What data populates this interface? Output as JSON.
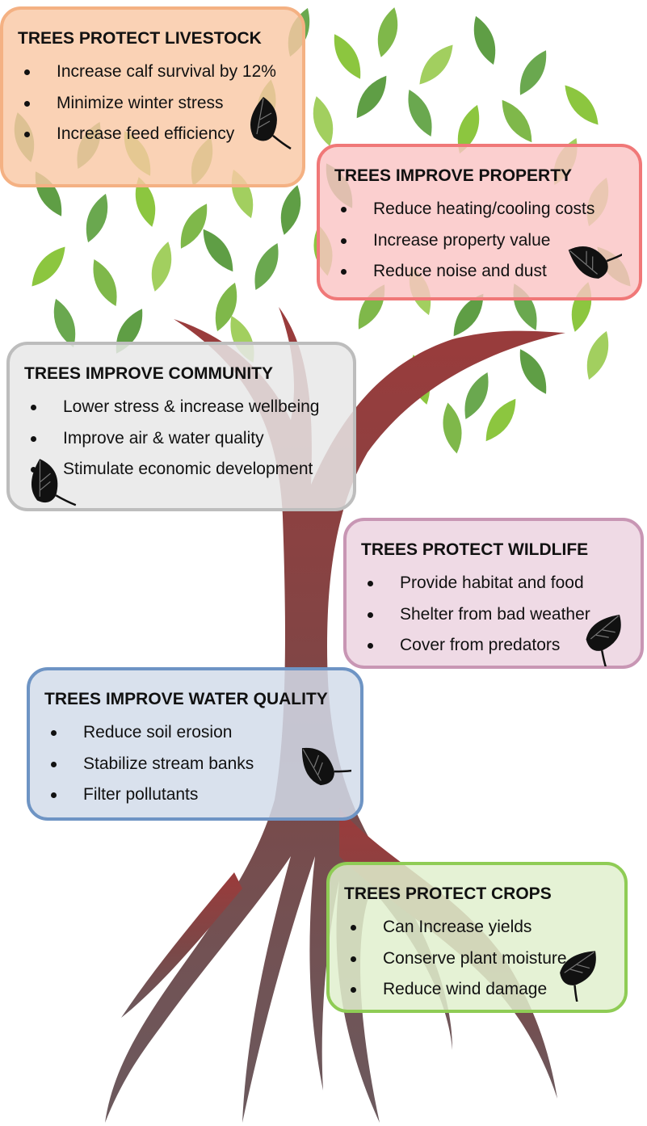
{
  "boxes": [
    {
      "title": "TREES PROTECT LIVESTOCK",
      "items": [
        "Increase calf survival by 12%",
        "Minimize winter stress",
        "Increase feed efficiency"
      ]
    },
    {
      "title": "TREES IMPROVE PROPERTY",
      "items": [
        "Reduce heating/cooling costs",
        "Increase property value",
        "Reduce noise and dust"
      ]
    },
    {
      "title": "TREES IMPROVE COMMUNITY",
      "items": [
        "Lower stress & increase wellbeing",
        "Improve air & water quality",
        "Stimulate economic development"
      ]
    },
    {
      "title": "TREES PROTECT WILDLIFE",
      "items": [
        "Provide habitat and food",
        "Shelter from bad weather",
        "Cover from predators"
      ]
    },
    {
      "title": "TREES IMPROVE WATER QUALITY",
      "items": [
        "Reduce soil erosion",
        "Stabilize stream banks",
        "Filter pollutants"
      ]
    },
    {
      "title": "TREES PROTECT CROPS",
      "items": [
        "Can Increase yields",
        "Conserve plant moisture",
        "Reduce wind damage"
      ]
    }
  ]
}
